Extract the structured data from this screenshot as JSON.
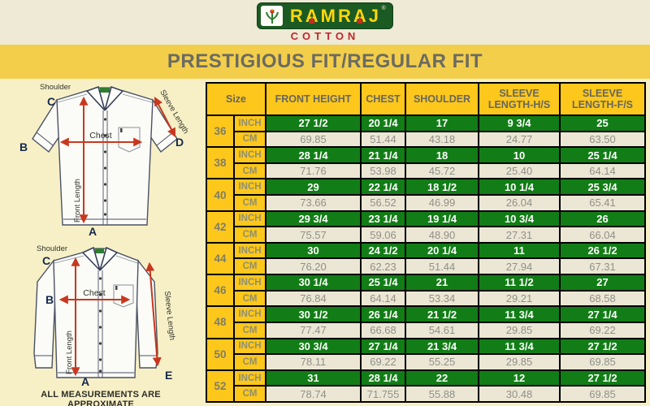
{
  "brand": {
    "name": "RAMRAJ",
    "registered": "®",
    "subtitle": "COTTON"
  },
  "banner": {
    "title": "PRESTIGIOUS FIT/REGULAR FIT"
  },
  "diagram": {
    "half_sleeve": {
      "shoulder_label": "Shoulder",
      "chest_label": "Chest",
      "front_length_label": "Front Length",
      "sleeve_length_label": "Sleeve Length",
      "point_a": "A",
      "point_b": "B",
      "point_c": "C",
      "point_d": "D"
    },
    "full_sleeve": {
      "shoulder_label": "Shoulder",
      "chest_label": "Chest",
      "front_length_label": "Front Length",
      "sleeve_length_label": "Sleeve Length",
      "point_a": "A",
      "point_b": "B",
      "point_c": "C",
      "point_e": "E"
    },
    "footnote": "ALL MEASUREMENTS ARE APPROXIMATE"
  },
  "size_chart": {
    "headers": {
      "size": "Size",
      "front_height": "FRONT HEIGHT",
      "chest": "CHEST",
      "shoulder": "SHOULDER",
      "sleeve_hs": "SLEEVE LENGTH-H/S",
      "sleeve_fs": "SLEEVE LENGTH-F/S"
    },
    "unit_labels": {
      "inch": "INCH",
      "cm": "CM"
    },
    "rows": [
      {
        "size": "36",
        "inch": [
          "27 1/2",
          "20 1/4",
          "17",
          "9 3/4",
          "25"
        ],
        "cm": [
          "69.85",
          "51.44",
          "43.18",
          "24.77",
          "63.50"
        ]
      },
      {
        "size": "38",
        "inch": [
          "28 1/4",
          "21 1/4",
          "18",
          "10",
          "25 1/4"
        ],
        "cm": [
          "71.76",
          "53.98",
          "45.72",
          "25.40",
          "64.14"
        ]
      },
      {
        "size": "40",
        "inch": [
          "29",
          "22 1/4",
          "18 1/2",
          "10 1/4",
          "25 3/4"
        ],
        "cm": [
          "73.66",
          "56.52",
          "46.99",
          "26.04",
          "65.41"
        ]
      },
      {
        "size": "42",
        "inch": [
          "29 3/4",
          "23 1/4",
          "19 1/4",
          "10 3/4",
          "26"
        ],
        "cm": [
          "75.57",
          "59.06",
          "48.90",
          "27.31",
          "66.04"
        ]
      },
      {
        "size": "44",
        "inch": [
          "30",
          "24 1/2",
          "20 1/4",
          "11",
          "26 1/2"
        ],
        "cm": [
          "76.20",
          "62.23",
          "51.44",
          "27.94",
          "67.31"
        ]
      },
      {
        "size": "46",
        "inch": [
          "30 1/4",
          "25 1/4",
          "21",
          "11 1/2",
          "27"
        ],
        "cm": [
          "76.84",
          "64.14",
          "53.34",
          "29.21",
          "68.58"
        ]
      },
      {
        "size": "48",
        "inch": [
          "30 1/2",
          "26 1/4",
          "21 1/2",
          "11 3/4",
          "27 1/4"
        ],
        "cm": [
          "77.47",
          "66.68",
          "54.61",
          "29.85",
          "69.22"
        ]
      },
      {
        "size": "50",
        "inch": [
          "30 3/4",
          "27 1/4",
          "21 3/4",
          "11 3/4",
          "27 1/2"
        ],
        "cm": [
          "78.11",
          "69.22",
          "55.25",
          "29.85",
          "69.85"
        ]
      },
      {
        "size": "52",
        "inch": [
          "31",
          "28 1/4",
          "22",
          "12",
          "27 1/2"
        ],
        "cm": [
          "78.74",
          "71.755",
          "55.88",
          "30.48",
          "69.85"
        ]
      }
    ]
  },
  "colors": {
    "brand_green": "#1B5A23",
    "brand_yellow": "#FFD60A",
    "cotton_red": "#C1272D",
    "banner_yellow": "#F3CE4A",
    "table_gold": "#FDC71B",
    "table_green": "#127D16",
    "cream": "#F7F0C7",
    "arrow_red": "#C8371F"
  }
}
